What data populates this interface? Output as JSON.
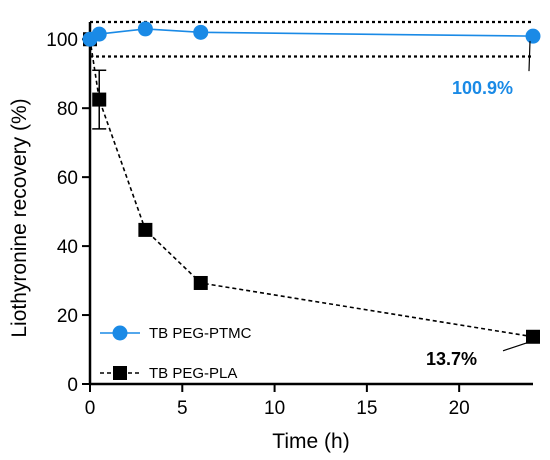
{
  "chart_data": {
    "type": "line",
    "xlabel": "Time (h)",
    "ylabel": "Liothyronine recovery (%)",
    "xlim": [
      0,
      24
    ],
    "ylim": [
      0,
      105
    ],
    "xticks": [
      0,
      5,
      10,
      15,
      20
    ],
    "yticks": [
      0,
      20,
      40,
      60,
      80,
      100
    ],
    "grid": false,
    "legend_position": "bottom-left",
    "reference_lines": [
      95,
      105
    ],
    "series": [
      {
        "name": "TB PEG-PTMC",
        "color": "#1a8ae6",
        "marker": "circle",
        "line_style": "solid",
        "x": [
          0,
          0.5,
          3,
          6,
          24
        ],
        "y": [
          100,
          101.5,
          103,
          102,
          100.9
        ],
        "error": [
          0,
          0,
          0,
          0,
          0
        ]
      },
      {
        "name": "TB PEG-PLA",
        "color": "#000000",
        "marker": "square",
        "line_style": "dashed",
        "x": [
          0,
          0.5,
          3,
          6,
          24
        ],
        "y": [
          100,
          82.5,
          44.7,
          29.3,
          13.7
        ],
        "error": [
          0,
          8.5,
          0,
          0,
          0
        ]
      }
    ],
    "annotations": [
      {
        "text": "100.9%",
        "series": 0,
        "point": 4,
        "color": "#1a8ae6"
      },
      {
        "text": "13.7%",
        "series": 1,
        "point": 4,
        "color": "#000000"
      }
    ]
  }
}
